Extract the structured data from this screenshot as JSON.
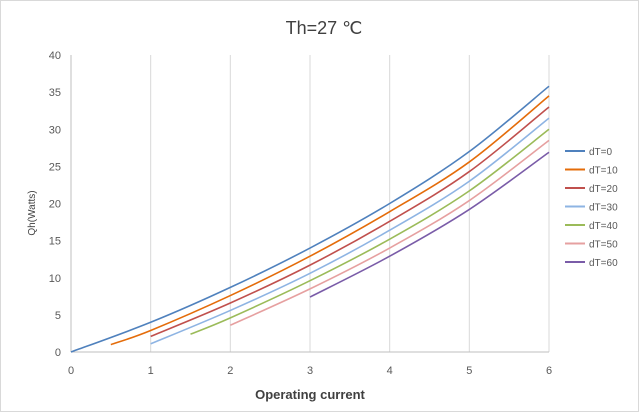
{
  "chart_data": {
    "type": "line",
    "title": "Th=27 ℃",
    "xlabel": "Operating current",
    "ylabel": "Qh(Watts)",
    "xlim": [
      0,
      6
    ],
    "ylim": [
      0,
      40
    ],
    "xticks": [
      0,
      1,
      2,
      3,
      4,
      5,
      6
    ],
    "yticks": [
      0,
      5,
      10,
      15,
      20,
      25,
      30,
      35,
      40
    ],
    "grid": "vertical",
    "legend_position": "right",
    "series": [
      {
        "name": "dT=0",
        "color": "#4f81bd",
        "x": [
          0,
          1,
          2,
          3,
          4,
          5,
          6
        ],
        "y": [
          0,
          4.0,
          8.7,
          14.0,
          20.0,
          27.0,
          35.8
        ]
      },
      {
        "name": "dT=10",
        "color": "#e46c0a",
        "x": [
          0.5,
          1,
          2,
          3,
          4,
          5,
          6
        ],
        "y": [
          1.0,
          2.9,
          7.6,
          12.9,
          18.9,
          25.6,
          34.5
        ]
      },
      {
        "name": "dT=20",
        "color": "#c0504d",
        "x": [
          1,
          2,
          3,
          4,
          5,
          6
        ],
        "y": [
          2.1,
          6.6,
          11.7,
          17.6,
          24.3,
          33.0
        ]
      },
      {
        "name": "dT=30",
        "color": "#8eb4e3",
        "x": [
          1,
          2,
          3,
          4,
          5,
          6
        ],
        "y": [
          1.1,
          5.6,
          10.6,
          16.4,
          23.0,
          31.5
        ]
      },
      {
        "name": "dT=40",
        "color": "#9bbb59",
        "x": [
          1.5,
          2,
          3,
          4,
          5,
          6
        ],
        "y": [
          2.4,
          4.6,
          9.6,
          15.2,
          21.7,
          30.0
        ]
      },
      {
        "name": "dT=50",
        "color": "#e6a0a0",
        "x": [
          2,
          3,
          4,
          5,
          6
        ],
        "y": [
          3.6,
          8.5,
          14.0,
          20.4,
          28.5
        ]
      },
      {
        "name": "dT=60",
        "color": "#7a5ca8",
        "x": [
          3,
          4,
          5,
          6
        ],
        "y": [
          7.4,
          12.9,
          19.2,
          26.9
        ]
      }
    ]
  }
}
